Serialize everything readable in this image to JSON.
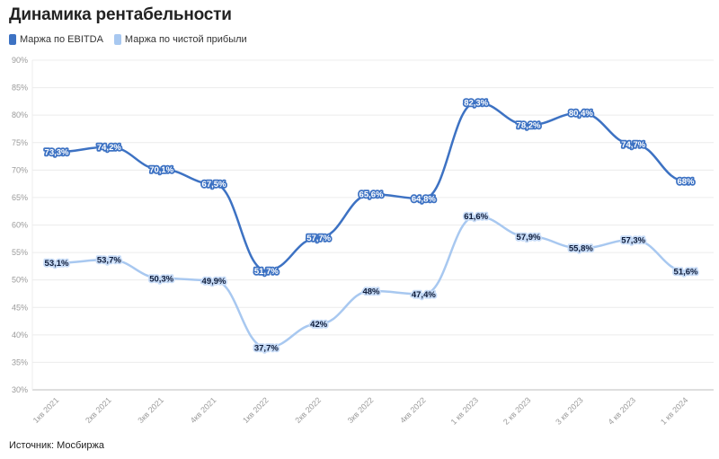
{
  "title": "Динамика рентабельности",
  "source": "Источник: Мосбиржа",
  "chart_data": {
    "type": "line",
    "title": "Динамика рентабельности",
    "categories": [
      "1кв 2021",
      "2кв 2021",
      "3кв 2021",
      "4кв 2021",
      "1кв 2022",
      "2кв 2022",
      "3кв 2022",
      "4кв 2022",
      "1 кв 2023",
      "2 кв 2023",
      "3 кв 2023",
      "4 кв 2023",
      "1 кв 2024"
    ],
    "series": [
      {
        "name": "Маржа по EBITDA",
        "color": "#3d72c3",
        "values": [
          73.3,
          74.2,
          70.1,
          67.5,
          51.7,
          57.7,
          65.6,
          64.8,
          82.3,
          78.2,
          80.4,
          74.7,
          68
        ],
        "labels": [
          "73,3%",
          "74,2%",
          "70,1%",
          "67,5%",
          "51,7%",
          "57,7%",
          "65,6%",
          "64,8%",
          "82,3%",
          "78,2%",
          "80,4%",
          "74,7%",
          "68%"
        ]
      },
      {
        "name": "Маржа по чистой прибыли",
        "color": "#a8c8f0",
        "values": [
          53.1,
          53.7,
          50.3,
          49.9,
          37.7,
          42,
          48,
          47.4,
          61.6,
          57.9,
          55.8,
          57.3,
          51.6
        ],
        "labels": [
          "53,1%",
          "53,7%",
          "50,3%",
          "49,9%",
          "37,7%",
          "42%",
          "48%",
          "47,4%",
          "61,6%",
          "57,9%",
          "55,8%",
          "57,3%",
          "51,6%"
        ]
      }
    ],
    "yticks": [
      "30%",
      "35%",
      "40%",
      "45%",
      "50%",
      "55%",
      "60%",
      "65%",
      "70%",
      "75%",
      "80%",
      "85%",
      "90%"
    ],
    "ylim": [
      30,
      90
    ],
    "grid": true,
    "legend": "top-left"
  }
}
